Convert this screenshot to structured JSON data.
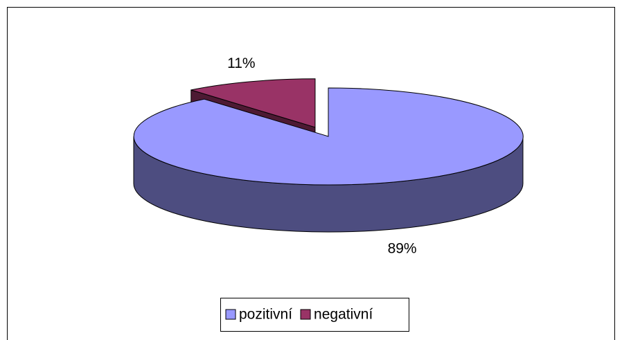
{
  "chart_data": {
    "type": "pie",
    "categories": [
      "pozitivní",
      "negativní"
    ],
    "values": [
      89,
      11
    ],
    "value_labels": [
      "89%",
      "11%"
    ],
    "colors": [
      "#9999ff",
      "#993366"
    ],
    "legend": "bottom"
  }
}
